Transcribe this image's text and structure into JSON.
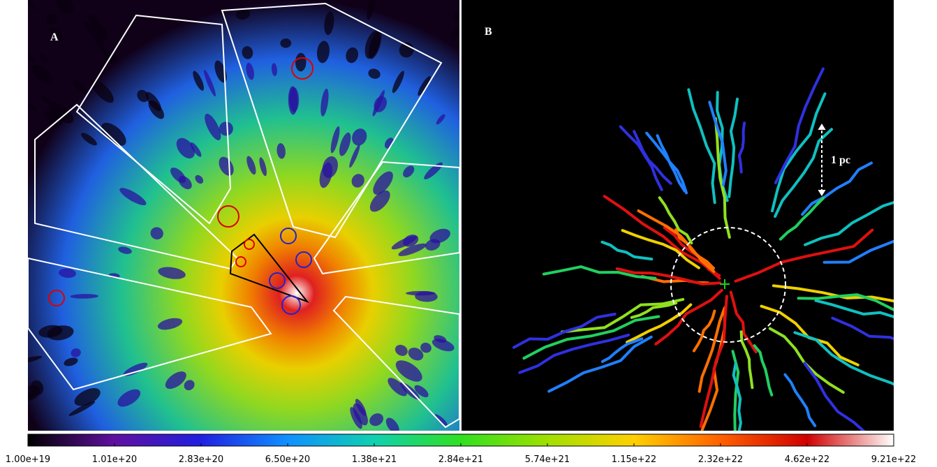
{
  "panels": [
    {
      "label": "A"
    },
    {
      "label": "B",
      "scale_label": "1 pc"
    }
  ],
  "colorbar": {
    "ticks": [
      "1.00e+19",
      "1.01e+20",
      "2.83e+20",
      "6.50e+20",
      "1.38e+21",
      "2.84e+21",
      "5.74e+21",
      "1.15e+22",
      "2.32e+22",
      "4.62e+22",
      "9.21e+22"
    ]
  }
}
